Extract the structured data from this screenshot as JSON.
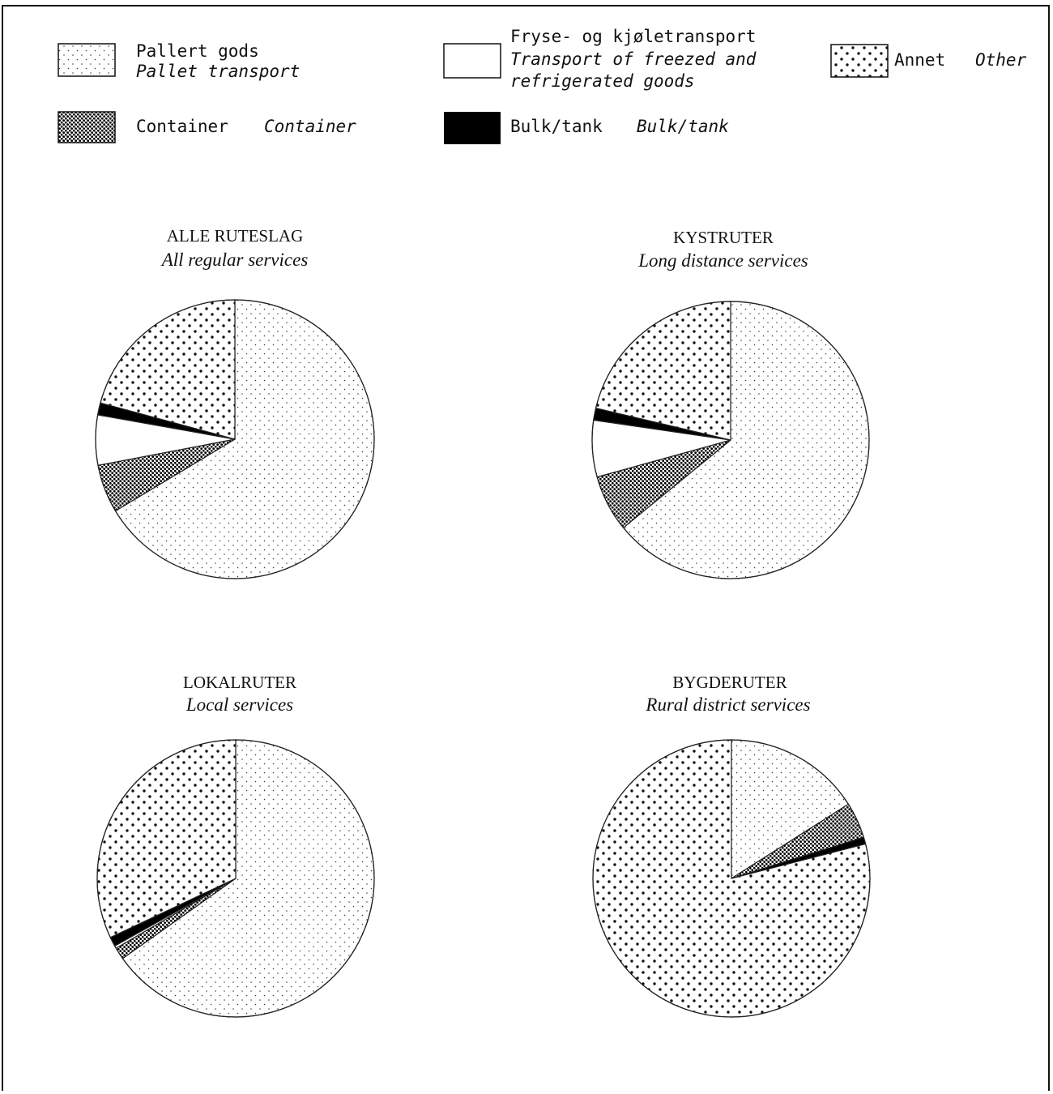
{
  "legend": [
    {
      "key": "pallet",
      "label": "Pallert gods",
      "label_en": "Pallet transport",
      "pattern": "fine-dots"
    },
    {
      "key": "frozen",
      "label": "Fryse- og kjøletransport",
      "label_en_lines": [
        "Transport of freezed and",
        "refrigerated goods"
      ],
      "pattern": "white"
    },
    {
      "key": "other",
      "label": "Annet",
      "label_en": "Other",
      "pattern": "coarse-dots"
    },
    {
      "key": "container",
      "label": "Container",
      "label_en": "Container",
      "pattern": "crosshatch"
    },
    {
      "key": "bulk",
      "label": "Bulk/tank",
      "label_en": "Bulk/tank",
      "pattern": "solid-black"
    }
  ],
  "chart_data": [
    {
      "type": "pie",
      "title": "ALLE RUTESLAG",
      "subtitle": "All regular services",
      "start": "12 o'clock, clockwise",
      "slices": [
        {
          "label": "Pallert gods",
          "key": "pallet",
          "value": 66.4
        },
        {
          "label": "Container",
          "key": "container",
          "value": 5.6
        },
        {
          "label": "Fryse- og kjøletransport",
          "key": "frozen",
          "value": 5.8
        },
        {
          "label": "Bulk/tank",
          "key": "bulk",
          "value": 1.4
        },
        {
          "label": "Annet",
          "key": "other",
          "value": 20.8
        }
      ]
    },
    {
      "type": "pie",
      "title": "KYSTRUTER",
      "subtitle": "Long distance services",
      "start": "12 o'clock, clockwise",
      "slices": [
        {
          "label": "Pallert gods",
          "key": "pallet",
          "value": 64.1
        },
        {
          "label": "Container",
          "key": "container",
          "value": 6.6
        },
        {
          "label": "Fryse- og kjøletransport",
          "key": "frozen",
          "value": 6.6
        },
        {
          "label": "Bulk/tank",
          "key": "bulk",
          "value": 1.4
        },
        {
          "label": "Annet",
          "key": "other",
          "value": 21.3
        }
      ]
    },
    {
      "type": "pie",
      "title": "LOKALRUTER",
      "subtitle": "Local services",
      "start": "12 o'clock, clockwise",
      "slices": [
        {
          "label": "Pallert gods",
          "key": "pallet",
          "value": 65.2
        },
        {
          "label": "Container",
          "key": "container",
          "value": 1.4
        },
        {
          "label": "Fryse- og kjøletransport",
          "key": "frozen",
          "value": 0.3
        },
        {
          "label": "Bulk/tank",
          "key": "bulk",
          "value": 1.1
        },
        {
          "label": "Annet",
          "key": "other",
          "value": 32.0
        }
      ]
    },
    {
      "type": "pie",
      "title": "BYGDERUTER",
      "subtitle": "Rural district services",
      "start": "12 o'clock, clockwise",
      "slices": [
        {
          "label": "Pallert gods",
          "key": "pallet",
          "value": 16.0
        },
        {
          "label": "Container",
          "key": "container",
          "value": 4.2
        },
        {
          "label": "Fryse- og kjøletransport",
          "key": "frozen",
          "value": 0.0
        },
        {
          "label": "Bulk/tank",
          "key": "bulk",
          "value": 0.8
        },
        {
          "label": "Annet",
          "key": "other",
          "value": 79.0
        }
      ]
    }
  ]
}
